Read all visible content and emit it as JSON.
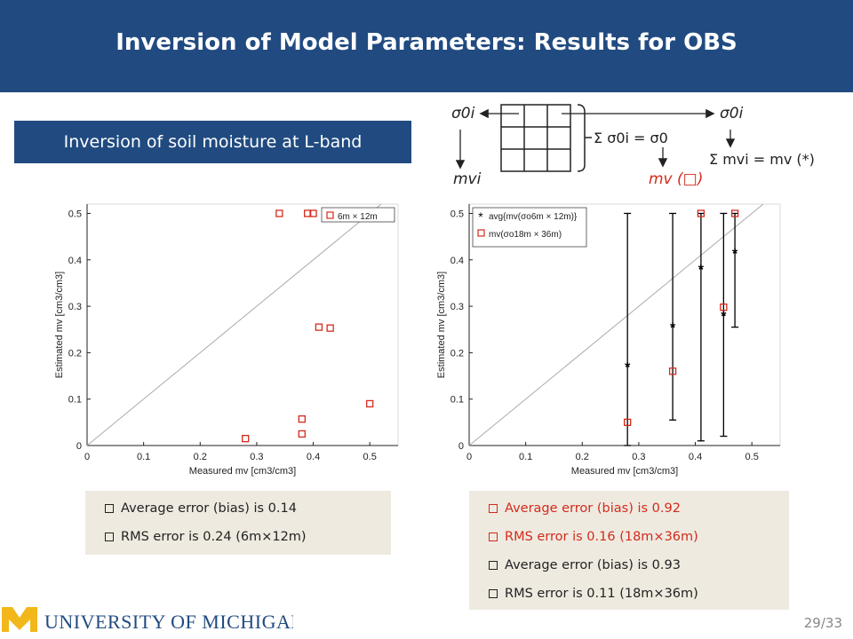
{
  "slide": {
    "title": "Inversion of Model Parameters: Results for OBS",
    "subtitle": "Inversion of soil moisture at L-band",
    "page_number": "29/33",
    "footer_logo_text": "UNIVERSITY OF MICHIGAN",
    "colors": {
      "title_bar": "#214b80",
      "accent_red": "#d42a1c",
      "note_bg": "#eeeae0",
      "maize": "#f2b71a"
    }
  },
  "diagram": {
    "sigma_left": "σ0i",
    "sigma_right": "σ0i",
    "sum_sigma": "Σ σ0i = σ0",
    "mv_left": "mvi",
    "mv_center": "mv (□)",
    "sum_mv": "Σ mvi = mv (*)",
    "grid": {
      "rows": 3,
      "cols": 3
    }
  },
  "notes_left": [
    "Average error (bias) is 0.14",
    "RMS error is 0.24 (6m×12m)"
  ],
  "notes_right": [
    "Average error (bias) is 0.92",
    "RMS error is 0.16 (18m×36m)",
    "Average error (bias) is 0.93",
    "RMS error is 0.11 (18m×36m)"
  ],
  "chart_data": [
    {
      "type": "scatter",
      "xlabel": "Measured mv [cm3/cm3]",
      "ylabel": "Estimated mv [cm3/cm3]",
      "xlim": [
        0,
        0.55
      ],
      "ylim": [
        0,
        0.52
      ],
      "xticks": [
        "0",
        "0.1",
        "0.2",
        "0.3",
        "0.4",
        "0.5"
      ],
      "yticks": [
        "0",
        "0.1",
        "0.2",
        "0.3",
        "0.4",
        "0.5"
      ],
      "legend_placement": "top-right",
      "identity_line": true,
      "series": [
        {
          "name": "6m × 12m",
          "marker": "square",
          "color": "#d42a1c",
          "points": [
            [
              0.28,
              0.015
            ],
            [
              0.34,
              0.5
            ],
            [
              0.39,
              0.5
            ],
            [
              0.4,
              0.5
            ],
            [
              0.38,
              0.057
            ],
            [
              0.38,
              0.025
            ],
            [
              0.41,
              0.255
            ],
            [
              0.43,
              0.253
            ],
            [
              0.5,
              0.5
            ],
            [
              0.5,
              0.09
            ]
          ]
        }
      ]
    },
    {
      "type": "scatter",
      "xlabel": "Measured mv [cm3/cm3]",
      "ylabel": "Estimated mv [cm3/cm3]",
      "xlim": [
        0,
        0.55
      ],
      "ylim": [
        0,
        0.52
      ],
      "xticks": [
        "0",
        "0.1",
        "0.2",
        "0.3",
        "0.4",
        "0.5"
      ],
      "yticks": [
        "0",
        "0.1",
        "0.2",
        "0.3",
        "0.4",
        "0.5"
      ],
      "legend_placement": "top-left",
      "identity_line": true,
      "series": [
        {
          "name": "avg{mv(σo6m × 12m)}",
          "marker": "star",
          "color": "#000000",
          "points": [
            [
              0.28,
              0.17
            ],
            [
              0.36,
              0.255
            ],
            [
              0.41,
              0.38
            ],
            [
              0.45,
              0.28
            ],
            [
              0.47,
              0.415
            ]
          ],
          "error_bars": [
            [
              0.0,
              0.5
            ],
            [
              0.055,
              0.5
            ],
            [
              0.01,
              0.5
            ],
            [
              0.02,
              0.5
            ],
            [
              0.255,
              0.5
            ]
          ]
        },
        {
          "name": "mv(σo18m × 36m)",
          "marker": "square",
          "color": "#d42a1c",
          "points": [
            [
              0.28,
              0.05
            ],
            [
              0.36,
              0.16
            ],
            [
              0.41,
              0.5
            ],
            [
              0.45,
              0.298
            ],
            [
              0.47,
              0.5
            ]
          ]
        }
      ]
    }
  ]
}
